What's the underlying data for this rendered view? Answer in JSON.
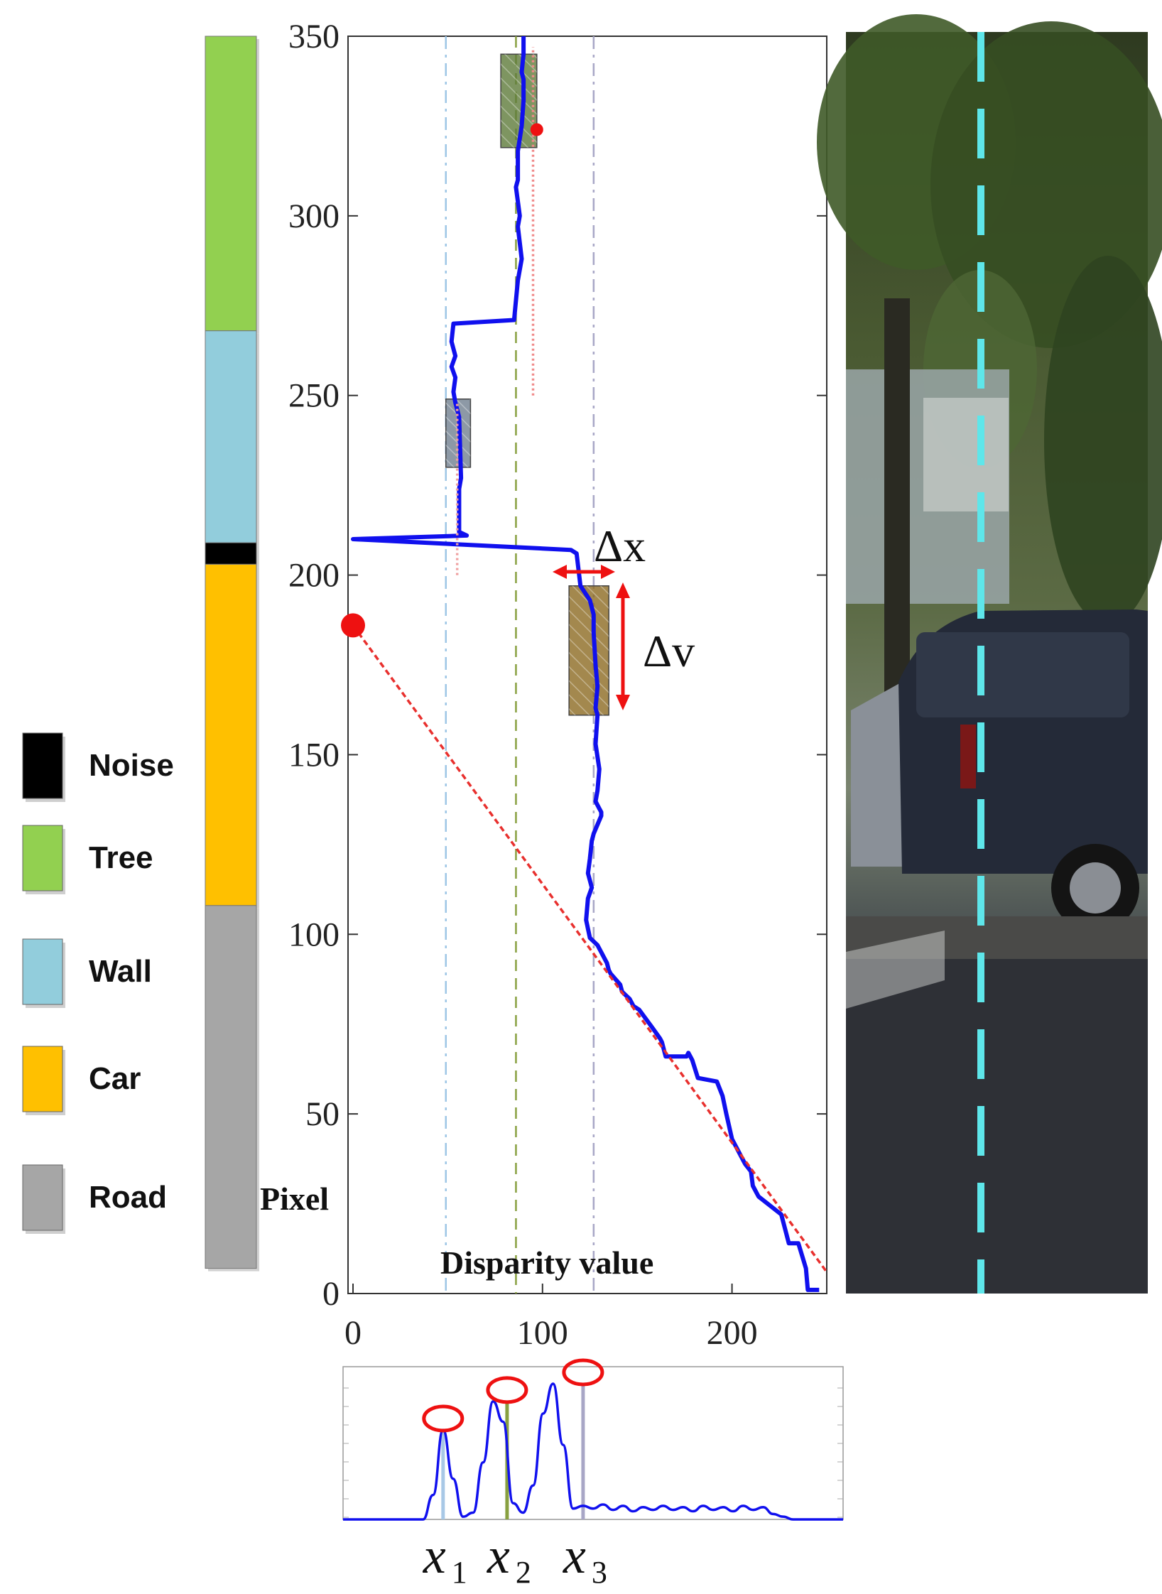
{
  "chart_data": [
    {
      "type": "line",
      "title": "",
      "xlabel": "Disparity value",
      "ylabel": "Pixel",
      "xlim": [
        0,
        250
      ],
      "ylim": [
        0,
        350
      ],
      "xticks": [
        "0",
        "100",
        "200"
      ],
      "xtick_values": [
        0,
        100,
        200
      ],
      "yticks": [
        "0",
        "50",
        "100",
        "150",
        "200",
        "250",
        "300",
        "350"
      ],
      "ytick_values": [
        0,
        50,
        100,
        150,
        200,
        250,
        300,
        350
      ],
      "series": [
        {
          "role": "v-disparity profile",
          "color": "#1010ee",
          "points": [
            [
              246,
              1
            ],
            [
              240,
              1
            ],
            [
              239,
              7
            ],
            [
              235,
              14
            ],
            [
              230,
              14
            ],
            [
              226,
              22
            ],
            [
              214,
              27
            ],
            [
              211,
              30
            ],
            [
              210,
              34
            ],
            [
              207,
              36
            ],
            [
              206,
              37
            ],
            [
              200,
              43
            ],
            [
              197,
              50
            ],
            [
              195,
              55
            ],
            [
              192,
              59
            ],
            [
              182,
              60
            ],
            [
              179,
              65
            ],
            [
              177,
              67
            ],
            [
              176,
              66
            ],
            [
              165,
              66
            ],
            [
              163,
              70
            ],
            [
              162,
              71
            ],
            [
              158,
              74
            ],
            [
              151,
              79
            ],
            [
              148,
              80
            ],
            [
              146,
              82
            ],
            [
              142,
              84
            ],
            [
              141,
              86
            ],
            [
              136,
              89
            ],
            [
              135,
              90
            ],
            [
              134,
              92
            ],
            [
              129,
              97
            ],
            [
              125,
              99
            ],
            [
              123,
              104
            ],
            [
              124,
              110
            ],
            [
              126,
              113
            ],
            [
              125,
              115
            ],
            [
              124,
              117
            ],
            [
              125,
              121
            ],
            [
              126,
              126
            ],
            [
              127,
              128
            ],
            [
              131,
              133
            ],
            [
              131,
              134
            ],
            [
              130,
              135
            ],
            [
              128,
              137
            ],
            [
              129,
              140
            ],
            [
              130,
              146
            ],
            [
              128,
              153
            ],
            [
              129,
              161
            ],
            [
              128,
              163
            ],
            [
              129,
              169
            ],
            [
              128,
              175
            ],
            [
              127,
              184
            ],
            [
              127,
              189
            ],
            [
              125,
              193
            ],
            [
              120,
              197
            ],
            [
              118,
              206
            ],
            [
              115,
              207
            ],
            [
              0,
              210
            ],
            [
              60,
              211
            ],
            [
              56,
              212
            ],
            [
              56,
              224
            ],
            [
              57,
              227
            ],
            [
              56,
              244
            ],
            [
              54,
              248
            ],
            [
              53,
              251
            ],
            [
              54,
              255
            ],
            [
              52,
              258
            ],
            [
              54,
              261
            ],
            [
              52,
              265
            ],
            [
              53,
              270
            ],
            [
              85,
              271
            ],
            [
              87,
              282
            ],
            [
              89,
              288
            ],
            [
              87,
              297
            ],
            [
              88,
              300
            ],
            [
              86,
              308
            ],
            [
              87,
              310
            ],
            [
              87,
              318
            ],
            [
              89,
              325
            ],
            [
              90,
              332
            ],
            [
              90,
              338
            ],
            [
              89,
              340
            ],
            [
              90,
              345
            ],
            [
              90,
              350
            ]
          ]
        },
        {
          "role": "road line fit",
          "color": "#e8302e",
          "style": "dashed",
          "points": [
            [
              0,
              186
            ],
            [
              250,
              6
            ]
          ]
        },
        {
          "role": "tree line fit",
          "color": "#f08a8a",
          "style": "dotted",
          "points": [
            [
              95,
              250
            ],
            [
              95,
              347
            ]
          ]
        },
        {
          "role": "wall line fit",
          "color": "#f0a0a0",
          "style": "dotted",
          "points": [
            [
              55,
              200
            ],
            [
              55,
              248
            ]
          ]
        }
      ],
      "reference_lines": [
        {
          "x": 49,
          "color": "#9ec6e6",
          "style": "dash-dot"
        },
        {
          "x": 86,
          "color": "#88a040",
          "style": "dashed"
        },
        {
          "x": 127,
          "color": "#a8a6c6",
          "style": "dash-dot"
        }
      ],
      "points": [
        {
          "x": 0,
          "y": 186,
          "color": "#ee1111"
        },
        {
          "x": 97,
          "y": 324,
          "color": "#ee1111"
        }
      ],
      "boxes": [
        {
          "object": "tree",
          "x": [
            78,
            97
          ],
          "y": [
            319,
            345
          ],
          "color": "#5e7a3a"
        },
        {
          "object": "wall",
          "x": [
            49,
            62
          ],
          "y": [
            230,
            249
          ],
          "color": "#708090"
        },
        {
          "object": "car",
          "x": [
            114,
            135
          ],
          "y": [
            161,
            197
          ],
          "color": "#8c6a22"
        }
      ],
      "annotations": [
        {
          "text": "Δx",
          "x": 130,
          "y": 208
        },
        {
          "text": "Δv",
          "x": 150,
          "y": 176
        }
      ]
    },
    {
      "type": "line",
      "title": "",
      "xlim": [
        0,
        250
      ],
      "series": [
        {
          "role": "disparity histogram",
          "color": "#1010ee",
          "x": [
            0,
            40,
            45,
            50,
            55,
            60,
            65,
            70,
            75,
            80,
            85,
            90,
            95,
            100,
            105,
            110,
            115,
            120,
            125,
            130,
            135,
            140,
            145,
            150,
            155,
            160,
            165,
            170,
            175,
            180,
            185,
            190,
            195,
            200,
            205,
            210,
            215,
            220,
            225,
            230,
            250
          ],
          "y": [
            0,
            0,
            0.18,
            0.66,
            0.3,
            0.02,
            0.05,
            0.42,
            0.87,
            0.72,
            0.12,
            0.05,
            0.25,
            0.78,
            1.0,
            0.55,
            0.08,
            0.1,
            0.08,
            0.11,
            0.07,
            0.1,
            0.06,
            0.09,
            0.07,
            0.1,
            0.07,
            0.09,
            0.06,
            0.1,
            0.07,
            0.09,
            0.06,
            0.1,
            0.07,
            0.09,
            0.04,
            0.02,
            0.0,
            0.0,
            0.0
          ]
        }
      ],
      "peaks": [
        {
          "label": "x",
          "subscript": "1",
          "x": 50,
          "y": 0.66,
          "color": "#a8c8e6"
        },
        {
          "label": "x",
          "subscript": "2",
          "x": 82,
          "y": 0.87,
          "color": "#88a040"
        },
        {
          "label": "x",
          "subscript": "3",
          "x": 120,
          "y": 1.0,
          "color": "#a8a6c6"
        }
      ]
    }
  ],
  "legend": [
    {
      "label": "Noise",
      "color": "#000000"
    },
    {
      "label": "Tree",
      "color": "#92d050"
    },
    {
      "label": "Wall",
      "color": "#92cddc"
    },
    {
      "label": "Car",
      "color": "#ffc000"
    },
    {
      "label": "Road",
      "color": "#a6a6a6"
    }
  ],
  "segment_bar": [
    {
      "class": "Tree",
      "from": 268,
      "to": 350,
      "color": "#92d050"
    },
    {
      "class": "Wall",
      "from": 209,
      "to": 268,
      "color": "#92cddc"
    },
    {
      "class": "Noise",
      "from": 203,
      "to": 209,
      "color": "#000000"
    },
    {
      "class": "Car",
      "from": 108,
      "to": 203,
      "color": "#ffc000"
    },
    {
      "class": "Road",
      "from": 7,
      "to": 108,
      "color": "#a6a6a6"
    }
  ],
  "photo": {
    "description_icon": "street-photo-car-tree",
    "guide_color": "#5ee6ea"
  }
}
